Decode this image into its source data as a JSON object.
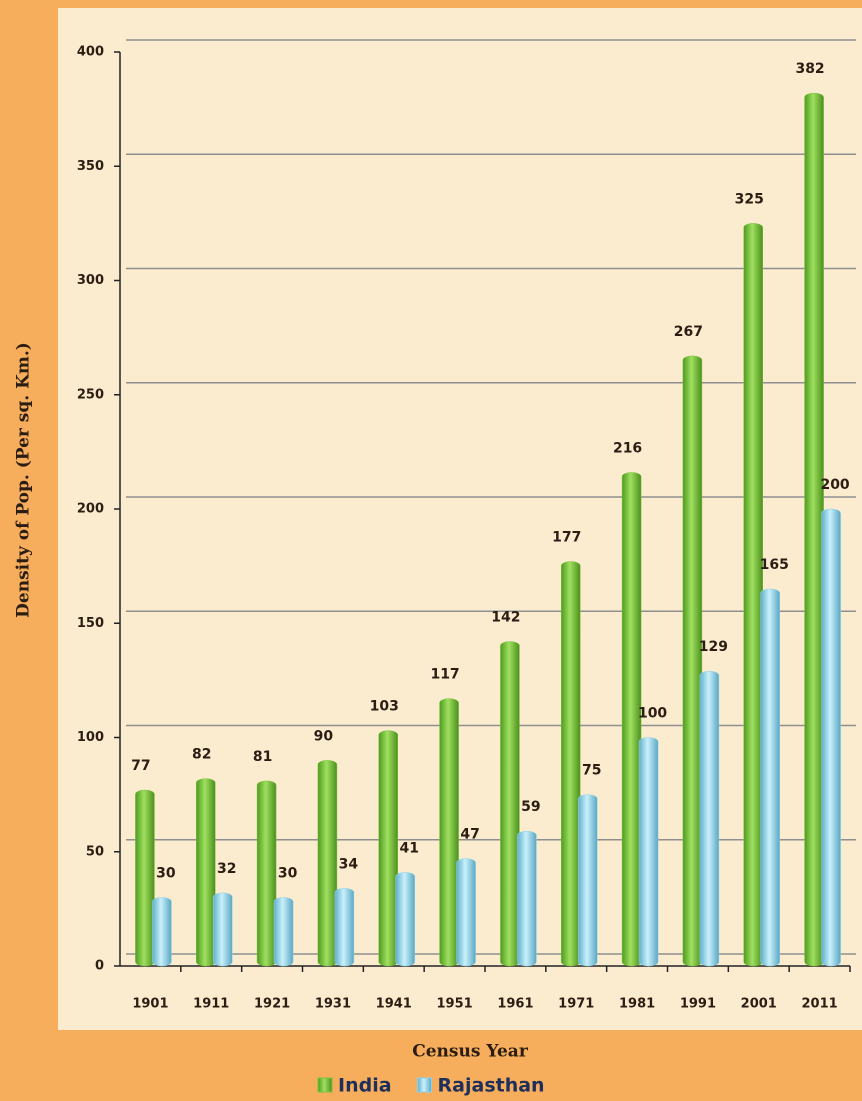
{
  "chart_data": {
    "type": "bar",
    "x_label": "Census Year",
    "y_label": "Density of Pop. (Per sq. Km.)",
    "categories": [
      "1901",
      "1911",
      "1921",
      "1931",
      "1941",
      "1951",
      "1961",
      "1971",
      "1981",
      "1991",
      "2001",
      "2011"
    ],
    "series": [
      {
        "name": "India",
        "color": "#7cc242",
        "values": [
          77,
          82,
          81,
          90,
          103,
          117,
          142,
          177,
          216,
          267,
          325,
          382
        ]
      },
      {
        "name": "Rajasthan",
        "color": "#8fd3ea",
        "values": [
          30,
          32,
          30,
          34,
          41,
          47,
          59,
          75,
          100,
          129,
          165,
          200
        ]
      }
    ],
    "ylim": [
      0,
      400
    ],
    "yticks": [
      0,
      50,
      100,
      150,
      200,
      250,
      300,
      350,
      400
    ],
    "grid": true,
    "legend": "bottom"
  }
}
